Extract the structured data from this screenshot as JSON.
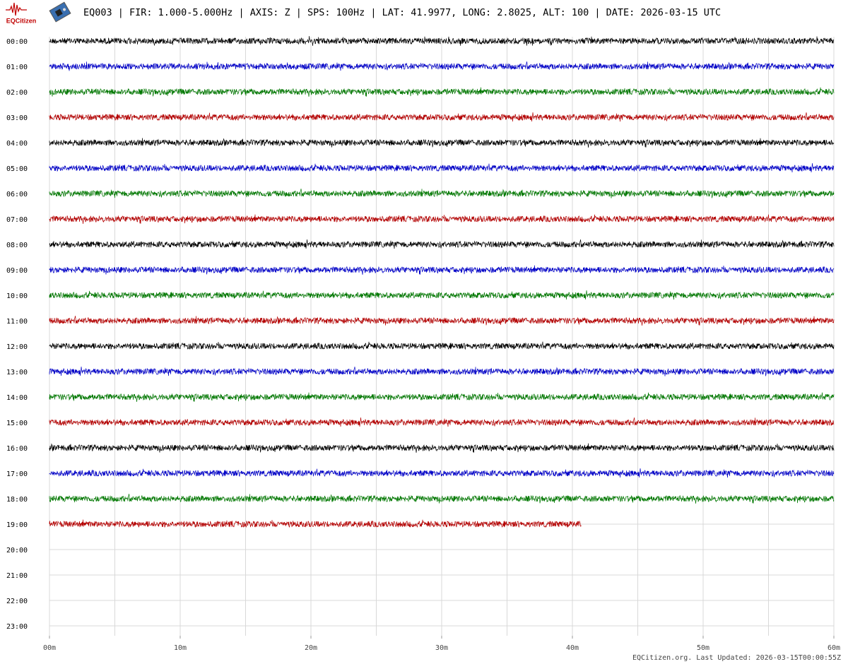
{
  "chart_data": {
    "type": "helicorder",
    "logo_text": "EQCitizen",
    "title": "EQ003 | FIR: 1.000-5.000Hz | AXIS: Z | SPS: 100Hz | LAT: 41.9977, LONG: 2.8025, ALT: 100 | DATE: 2026-03-15 UTC",
    "categories": [
      "00:00",
      "01:00",
      "02:00",
      "03:00",
      "04:00",
      "05:00",
      "06:00",
      "07:00",
      "08:00",
      "09:00",
      "10:00",
      "11:00",
      "12:00",
      "13:00",
      "14:00",
      "15:00",
      "16:00",
      "17:00",
      "18:00",
      "19:00",
      "20:00",
      "21:00",
      "22:00",
      "23:00"
    ],
    "trace_ends": [
      60,
      60,
      60,
      60,
      60,
      60,
      60,
      60,
      60,
      60,
      60,
      60,
      60,
      60,
      60,
      60,
      60,
      60,
      60,
      40.7
    ],
    "colors": [
      "#000000",
      "#0000c8",
      "#007800",
      "#b40000"
    ],
    "xlim": [
      0,
      60
    ],
    "xticks": [
      {
        "value": 0,
        "label": "00m"
      },
      {
        "value": 10,
        "label": "10m"
      },
      {
        "value": 20,
        "label": "20m"
      },
      {
        "value": 30,
        "label": "30m"
      },
      {
        "value": 40,
        "label": "40m"
      },
      {
        "value": 50,
        "label": "50m"
      },
      {
        "value": 60,
        "label": "60m"
      }
    ],
    "xgrid": [
      0,
      5,
      10,
      15,
      20,
      25,
      30,
      35,
      40,
      45,
      50,
      55,
      60
    ],
    "footer": "EQCitizen.org. Last Updated: 2026-03-15T00:00:55Z"
  }
}
